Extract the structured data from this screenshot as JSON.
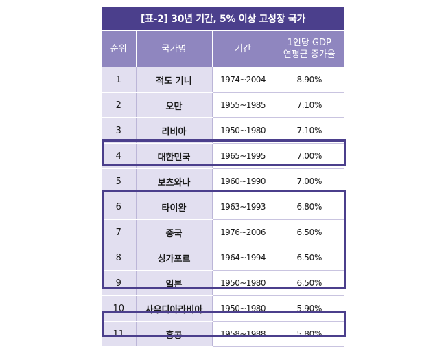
{
  "table": {
    "title": "[표-2] 30년 기간, 5% 이상 고성장 국가",
    "headers": {
      "rank": "순위",
      "country": "국가명",
      "period": "기간",
      "growth_line1": "1인당 GDP",
      "growth_line2": "연평균 증가율"
    },
    "rows": [
      {
        "rank": "1",
        "country": "적도 기니",
        "period": "1974~2004",
        "growth": "8.90%"
      },
      {
        "rank": "2",
        "country": "오만",
        "period": "1955~1985",
        "growth": "7.10%"
      },
      {
        "rank": "3",
        "country": "리비아",
        "period": "1950~1980",
        "growth": "7.10%"
      },
      {
        "rank": "4",
        "country": "대한민국",
        "period": "1965~1995",
        "growth": "7.00%"
      },
      {
        "rank": "5",
        "country": "보츠와나",
        "period": "1960~1990",
        "growth": "7.00%"
      },
      {
        "rank": "6",
        "country": "타이완",
        "period": "1963~1993",
        "growth": "6.80%"
      },
      {
        "rank": "7",
        "country": "중국",
        "period": "1976~2006",
        "growth": "6.50%"
      },
      {
        "rank": "8",
        "country": "싱가포르",
        "period": "1964~1994",
        "growth": "6.50%"
      },
      {
        "rank": "9",
        "country": "일본",
        "period": "1950~1980",
        "growth": "6.50%"
      },
      {
        "rank": "10",
        "country": "사우디아라비아",
        "period": "1950~1980",
        "growth": "5.90%"
      },
      {
        "rank": "11",
        "country": "홍콩",
        "period": "1958~1988",
        "growth": "5.80%"
      }
    ]
  }
}
